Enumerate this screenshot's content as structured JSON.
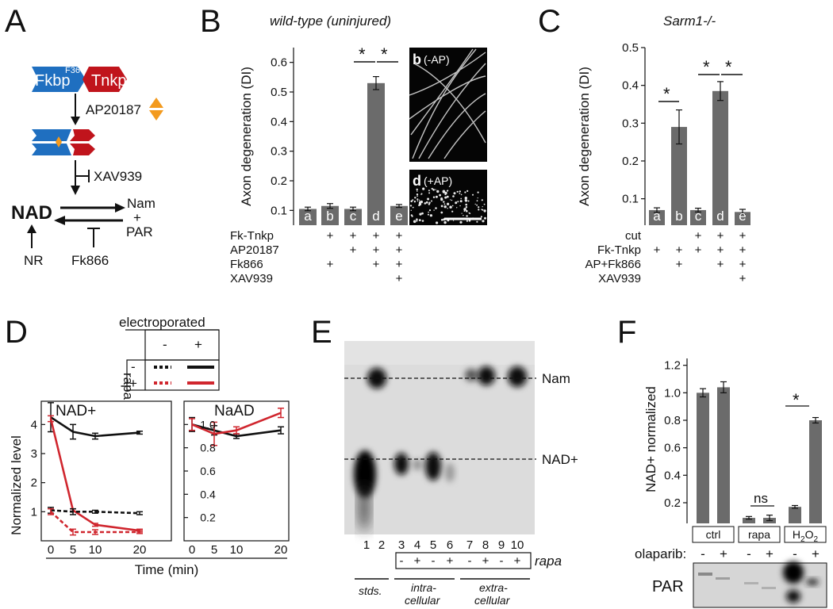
{
  "panel_letters": {
    "a": "A",
    "b": "B",
    "c": "C",
    "d": "D",
    "e": "E",
    "f": "F"
  },
  "panelA": {
    "fkbp": "Fkbp",
    "f36v": "F36V",
    "tnkp": "Tnkp",
    "ap20187": "AP20187",
    "xav939": "XAV939",
    "nad": "NAD",
    "nam": "Nam",
    "plus": "+",
    "par": "PAR",
    "nr": "NR",
    "fk866": "Fk866"
  },
  "panelB": {
    "title": "wild-type (uninjured)",
    "ylabel": "Axon degeneration (DI)",
    "ticks": [
      "0.1",
      "0.2",
      "0.3",
      "0.4",
      "0.5",
      "0.6"
    ],
    "bar_labels": [
      "a",
      "b",
      "c",
      "d",
      "e"
    ],
    "conditions": [
      "Fk-Tnkp",
      "AP20187",
      "Fk866",
      "XAV939"
    ],
    "inset_b": "b",
    "inset_b_label": "(-AP)",
    "inset_d": "d",
    "inset_d_label": "(+AP)"
  },
  "panelC": {
    "title": "Sarm1-/-",
    "ylabel": "Axon degeneration (DI)",
    "ticks": [
      "0.1",
      "0.2",
      "0.3",
      "0.4",
      "0.5"
    ],
    "bar_labels": [
      "a",
      "b",
      "c",
      "d",
      "e"
    ],
    "conditions": [
      "cut",
      "Fk-Tnkp",
      "AP+Fk866",
      "XAV939"
    ]
  },
  "panelD": {
    "header": "electroporated",
    "minus": "-",
    "plus": "+",
    "rapa": "rapa",
    "nad_title": "NAD+",
    "naad_title": "NaAD",
    "ylabel": "Normalized level",
    "xlabel": "Time (min)",
    "left_ticks": [
      "1",
      "2",
      "3",
      "4"
    ],
    "right_ticks": [
      "0.2",
      "0.4",
      "0.6",
      "0.8",
      "1.0"
    ],
    "x_ticks": [
      "0",
      "5",
      "10",
      "20"
    ]
  },
  "panelE": {
    "nam": "Nam",
    "nadplus": "NAD+",
    "lanes": [
      "1",
      "2",
      "3",
      "4",
      "5",
      "6",
      "7",
      "8",
      "9",
      "10"
    ],
    "rapa_signs": [
      "-",
      "+",
      "-",
      "+",
      "-",
      "+",
      "-",
      "+"
    ],
    "rapa": "rapa",
    "stds": "stds.",
    "intra": "intra-\ncellular",
    "intra1": "intra-",
    "intra2": "cellular",
    "extra1": "extra-",
    "extra2": "cellular"
  },
  "panelF": {
    "ylabel": "NAD+ normalized",
    "ticks": [
      "0.2",
      "0.4",
      "0.6",
      "0.8",
      "1.0",
      "1.2"
    ],
    "groups": [
      "ctrl",
      "rapa",
      "H2O2"
    ],
    "ns": "ns",
    "olaparib": "olaparib:",
    "signs": [
      "-",
      "+",
      "-",
      "+",
      "-",
      "+"
    ],
    "par": "PAR"
  },
  "colors": {
    "bar": "#6b6b6b",
    "red": "#d0262e",
    "blue": "#1f6fc0",
    "darkred": "#c0141c",
    "orange": "#f39a1e"
  },
  "chart_data": [
    {
      "type": "bar",
      "id": "B",
      "categories": [
        "a",
        "b",
        "c",
        "d",
        "e"
      ],
      "values": [
        0.105,
        0.115,
        0.105,
        0.53,
        0.115
      ],
      "errors": [
        0.006,
        0.008,
        0.006,
        0.022,
        0.005
      ],
      "ylim": [
        0.05,
        0.65
      ],
      "title": "wild-type (uninjured)",
      "ylabel": "Axon degeneration (DI)"
    },
    {
      "type": "bar",
      "id": "C",
      "categories": [
        "a",
        "b",
        "c",
        "d",
        "e"
      ],
      "values": [
        0.07,
        0.29,
        0.07,
        0.385,
        0.065
      ],
      "errors": [
        0.006,
        0.045,
        0.005,
        0.025,
        0.007
      ],
      "ylim": [
        0.03,
        0.5
      ],
      "title": "Sarm1-/-",
      "ylabel": "Axon degeneration (DI)"
    },
    {
      "type": "line",
      "id": "D-NAD+",
      "x": [
        0,
        5,
        10,
        20
      ],
      "series": [
        {
          "name": "",
          "color": "black",
          "dash": false,
          "values": [
            4.25,
            3.75,
            3.6,
            3.72
          ],
          "errors": [
            0.5,
            0.25,
            0.1,
            0.05
          ]
        },
        {
          "name": "",
          "color": "red",
          "dash": false,
          "values": [
            4.2,
            1.05,
            0.55,
            0.35
          ],
          "errors": [
            0.1,
            0.05,
            0.05,
            0.05
          ]
        },
        {
          "name": "",
          "color": "black",
          "dash": true,
          "values": [
            1.05,
            1.0,
            1.0,
            0.95
          ],
          "errors": [
            0.1,
            0.1,
            0.05,
            0.05
          ]
        },
        {
          "name": "",
          "color": "red",
          "dash": true,
          "values": [
            1.0,
            0.3,
            0.3,
            0.3
          ],
          "errors": [
            0.1,
            0.1,
            0.08,
            0.05
          ]
        }
      ],
      "ylim": [
        0,
        4.8
      ],
      "xlabel": "Time (min)",
      "ylabel": "Normalized level"
    },
    {
      "type": "line",
      "id": "D-NaAD",
      "x": [
        0,
        5,
        10,
        20
      ],
      "series": [
        {
          "name": "",
          "color": "black",
          "values": [
            1.0,
            0.95,
            0.9,
            0.95
          ],
          "errors": [
            0.06,
            0.04,
            0.02,
            0.03
          ]
        },
        {
          "name": "",
          "color": "red",
          "values": [
            1.0,
            0.92,
            0.95,
            1.1
          ],
          "errors": [
            0.05,
            0.1,
            0.03,
            0.04
          ]
        }
      ],
      "ylim": [
        0,
        1.2
      ],
      "xlabel": "Time (min)"
    },
    {
      "type": "bar",
      "id": "F",
      "categories": [
        "ctrl -",
        "ctrl +",
        "rapa -",
        "rapa +",
        "H2O2 -",
        "H2O2 +"
      ],
      "values": [
        1.0,
        1.04,
        0.09,
        0.09,
        0.17,
        0.8
      ],
      "errors": [
        0.03,
        0.04,
        0.01,
        0.02,
        0.01,
        0.02
      ],
      "ylim": [
        0.05,
        1.25
      ],
      "ylabel": "NAD+ normalized"
    }
  ]
}
